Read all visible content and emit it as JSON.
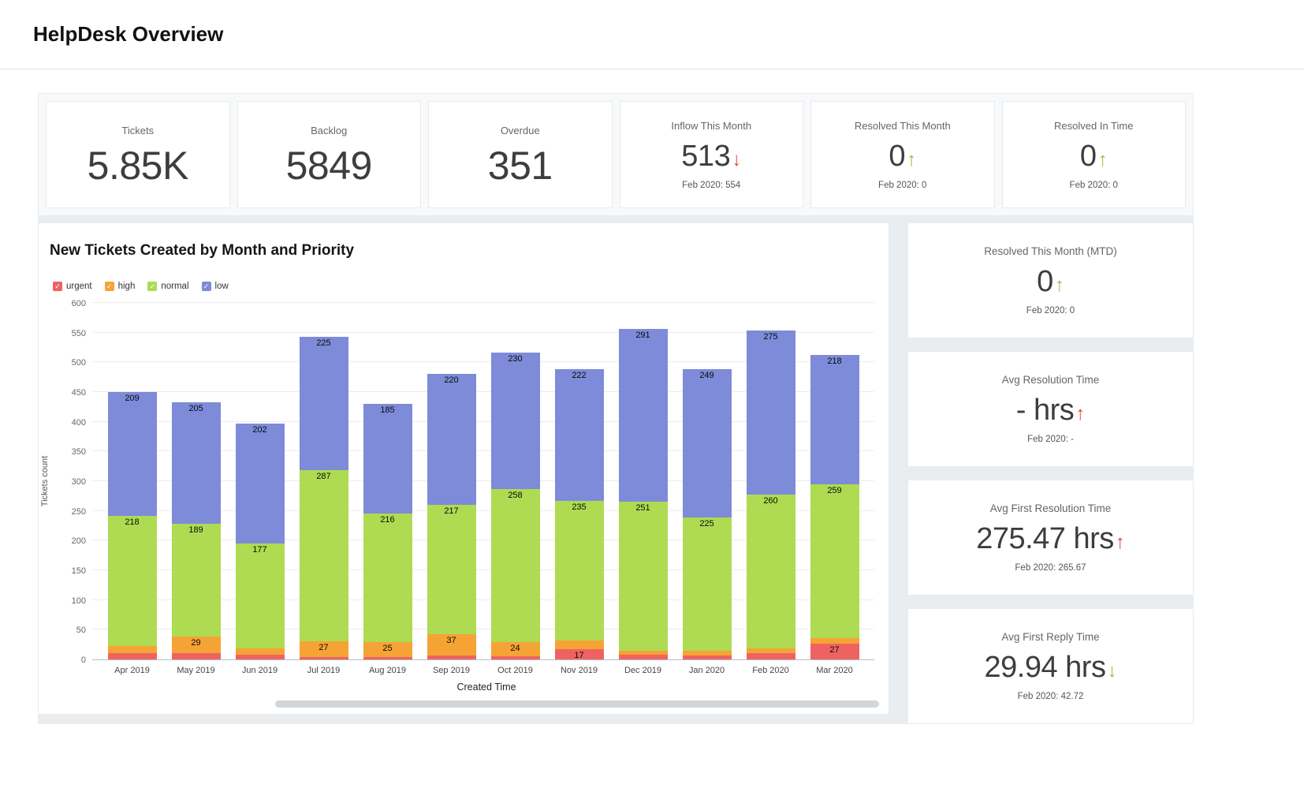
{
  "header": {
    "title": "HelpDesk Overview"
  },
  "colors": {
    "positive": "#8dc63f",
    "negative": "#e6453a"
  },
  "kpis": [
    {
      "label": "Tickets",
      "value": "5.85K",
      "arrow": "",
      "trend": "",
      "sub": ""
    },
    {
      "label": "Backlog",
      "value": "5849",
      "arrow": "",
      "trend": "",
      "sub": ""
    },
    {
      "label": "Overdue",
      "value": "351",
      "arrow": "",
      "trend": "",
      "sub": ""
    },
    {
      "label": "Inflow This Month",
      "value": "513",
      "arrow": "down",
      "trend": "negative",
      "sub": "Feb 2020: 554"
    },
    {
      "label": "Resolved This Month",
      "value": "0",
      "arrow": "up",
      "trend": "positive",
      "sub": "Feb 2020: 0"
    },
    {
      "label": "Resolved In Time",
      "value": "0",
      "arrow": "up",
      "trend": "positive",
      "sub": "Feb 2020: 0"
    }
  ],
  "side_stats": [
    {
      "label": "Resolved This Month (MTD)",
      "value": "0",
      "arrow": "up",
      "trend": "positive",
      "sub": "Feb 2020: 0"
    },
    {
      "label": "Avg Resolution Time",
      "value": "- hrs",
      "arrow": "up",
      "trend": "negative",
      "sub": "Feb 2020: -"
    },
    {
      "label": "Avg First Resolution Time",
      "value": "275.47 hrs",
      "arrow": "up",
      "trend": "negative",
      "sub": "Feb 2020: 265.67"
    },
    {
      "label": "Avg First Reply Time",
      "value": "29.94 hrs",
      "arrow": "down",
      "trend": "positive",
      "sub": "Feb 2020: 42.72"
    }
  ],
  "chart_data": {
    "type": "bar",
    "stacked": true,
    "title": "New Tickets Created by Month and Priority",
    "xlabel": "Created Time",
    "ylabel": "Tickets count",
    "ylim": [
      0,
      600
    ],
    "ytick_step": 50,
    "grid": true,
    "legend_position": "top-left",
    "label_min_value": 17,
    "categories": [
      "Apr 2019",
      "May 2019",
      "Jun 2019",
      "Jul 2019",
      "Aug 2019",
      "Sep 2019",
      "Oct 2019",
      "Nov 2019",
      "Dec 2019",
      "Jan 2020",
      "Feb 2020",
      "Mar 2020"
    ],
    "series": [
      {
        "name": "urgent",
        "color": "#ee6361",
        "values": [
          10,
          10,
          8,
          4,
          4,
          6,
          5,
          17,
          8,
          6,
          10,
          27
        ]
      },
      {
        "name": "high",
        "color": "#f6a335",
        "values": [
          13,
          29,
          10,
          27,
          25,
          37,
          24,
          15,
          6,
          8,
          8,
          9
        ]
      },
      {
        "name": "normal",
        "color": "#aedb52",
        "values": [
          218,
          189,
          177,
          287,
          216,
          217,
          258,
          235,
          251,
          225,
          260,
          259
        ]
      },
      {
        "name": "low",
        "color": "#7d8bd8",
        "values": [
          209,
          205,
          202,
          225,
          185,
          220,
          230,
          222,
          291,
          249,
          275,
          218
        ]
      }
    ]
  }
}
